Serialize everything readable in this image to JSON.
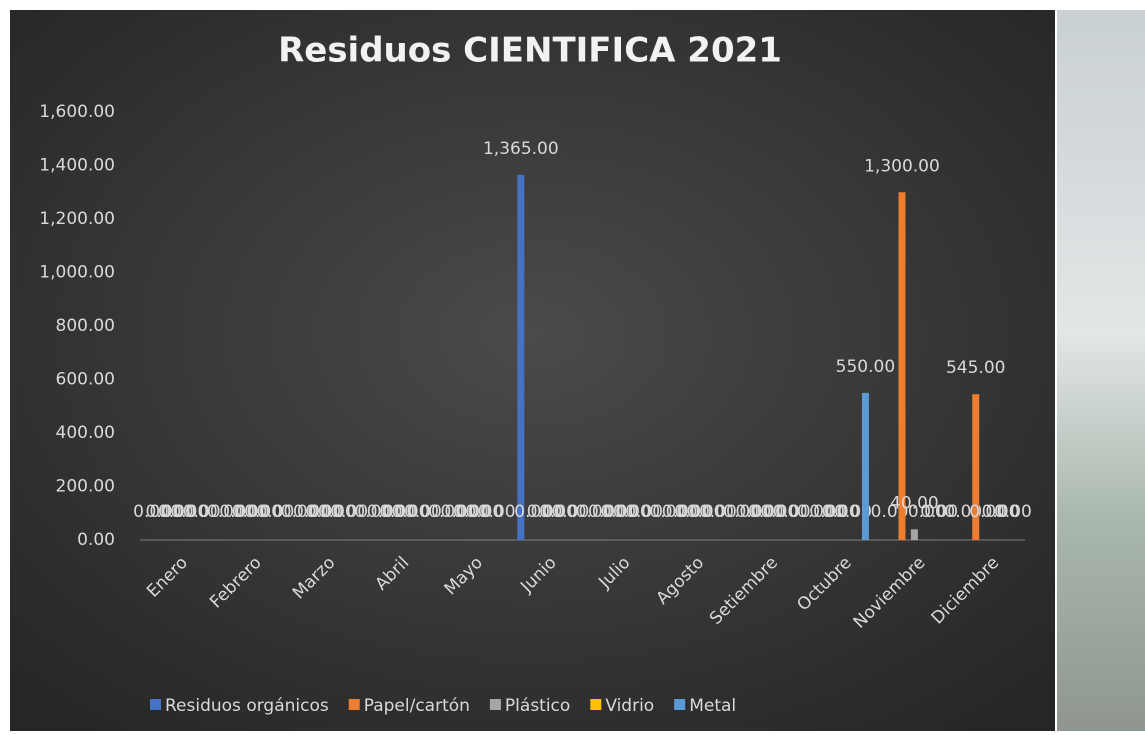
{
  "chart_data": {
    "type": "bar",
    "title": "Residuos CIENTIFICA 2021",
    "categories": [
      "Enero",
      "Febrero",
      "Marzo",
      "Abril",
      "Mayo",
      "Junio",
      "Julio",
      "Agosto",
      "Setiembre",
      "Octubre",
      "Noviembre",
      "Diciembre"
    ],
    "series": [
      {
        "name": "Residuos orgánicos",
        "color": "#4472c4",
        "values": [
          0,
          0,
          0,
          0,
          0,
          1365,
          0,
          0,
          0,
          0,
          0,
          0
        ],
        "value_labels": [
          "0.00",
          "0.00",
          "0.00",
          "0.00",
          "0.00",
          "1,365.00",
          "0.00",
          "0.00",
          "0.00",
          "0.00",
          "0.00",
          "0.00"
        ]
      },
      {
        "name": "Papel/cartón",
        "color": "#ed7d31",
        "values": [
          0,
          0,
          0,
          0,
          0,
          0,
          0,
          0,
          0,
          0,
          1300,
          545
        ],
        "value_labels": [
          "0.00",
          "0.00",
          "0.00",
          "0.00",
          "0.00",
          "0.00",
          "0.00",
          "0.00",
          "0.00",
          "0.00",
          "1,300.00",
          "545.00"
        ]
      },
      {
        "name": "Plástico",
        "color": "#a5a5a5",
        "values": [
          0,
          0,
          0,
          0,
          0,
          0,
          0,
          0,
          0,
          0,
          40,
          0
        ],
        "value_labels": [
          "0.00",
          "0.00",
          "0.00",
          "0.00",
          "0.00",
          "0.00",
          "0.00",
          "0.00",
          "0.00",
          "0.00",
          "40.00",
          "0.00"
        ]
      },
      {
        "name": "Vidrio",
        "color": "#ffc000",
        "values": [
          0,
          0,
          0,
          0,
          0,
          0,
          0,
          0,
          0,
          0,
          0,
          0
        ],
        "value_labels": [
          "0.00",
          "0.00",
          "0.00",
          "0.00",
          "0.00",
          "0.00",
          "0.00",
          "0.00",
          "0.00",
          "0.00",
          "0.00",
          "0.00"
        ]
      },
      {
        "name": "Metal",
        "color": "#5b9bd5",
        "values": [
          0,
          0,
          0,
          0,
          0,
          0,
          0,
          0,
          0,
          550,
          0,
          0
        ],
        "value_labels": [
          "0.00",
          "0.00",
          "0.00",
          "0.00",
          "0.00",
          "0.00",
          "0.00",
          "0.00",
          "0.00",
          "550.00",
          "0.00",
          "0.00"
        ]
      }
    ],
    "ylim": [
      0,
      1600
    ],
    "yticks": [
      {
        "value": 0,
        "label": "0.00"
      },
      {
        "value": 200,
        "label": "200.00"
      },
      {
        "value": 400,
        "label": "400.00"
      },
      {
        "value": 600,
        "label": "600.00"
      },
      {
        "value": 800,
        "label": "800.00"
      },
      {
        "value": 1000,
        "label": "1,000.00"
      },
      {
        "value": 1200,
        "label": "1,200.00"
      },
      {
        "value": 1400,
        "label": "1,400.00"
      },
      {
        "value": 1600,
        "label": "1,600.00"
      }
    ],
    "grid": false,
    "legend": "bottom"
  }
}
